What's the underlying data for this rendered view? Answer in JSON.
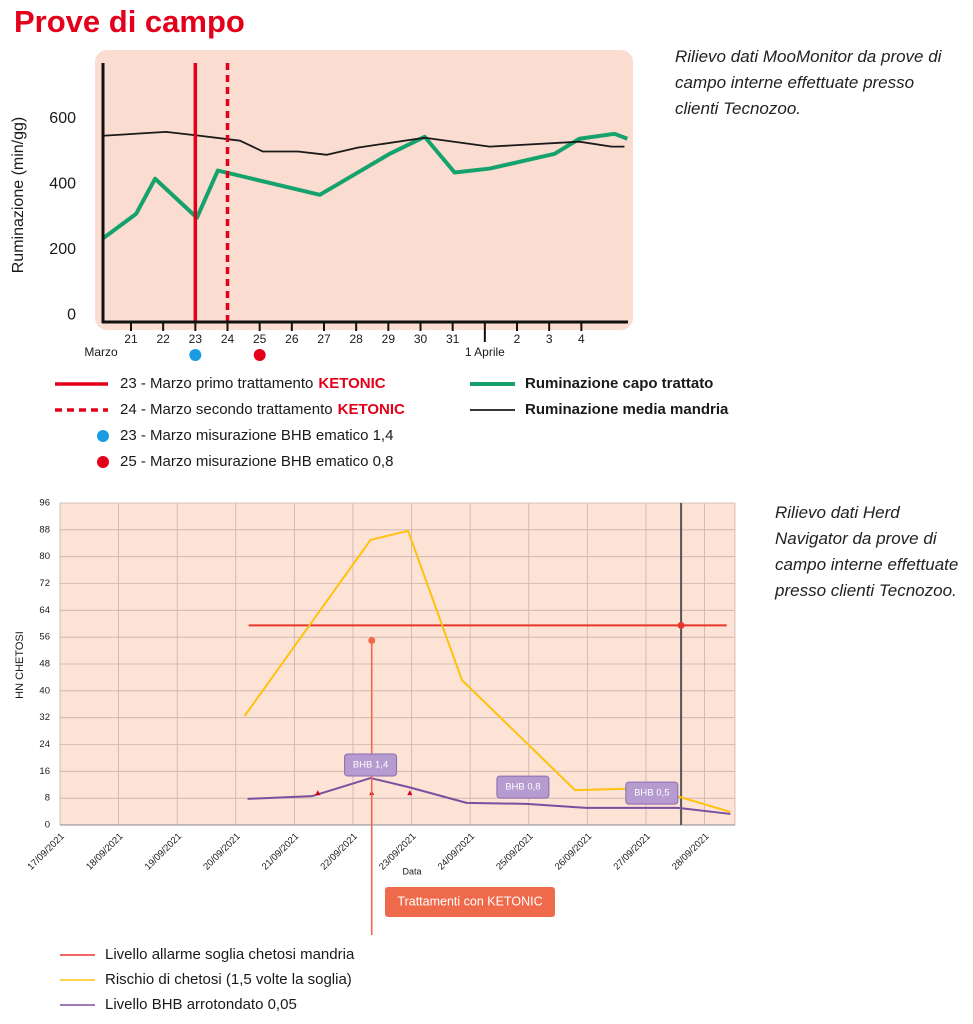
{
  "title": "Prove di campo",
  "chart_data": [
    {
      "type": "line",
      "note": "Rilievo dati MooMonitor da prove di campo interne effettuate presso clienti Tecnozoo.",
      "ylabel": "Ruminazione (min/gg)",
      "month_label": "Marzo",
      "xlim": [
        20.13,
        36.45
      ],
      "ylim": [
        -20,
        770
      ],
      "xticks": [
        21,
        22,
        23,
        24,
        25,
        26,
        27,
        28,
        29,
        30,
        31,
        {
          "value": 32,
          "label": "1 Aprile"
        },
        {
          "value": 33,
          "label": "2"
        },
        {
          "value": 34,
          "label": "3"
        },
        {
          "value": 35,
          "label": "4"
        }
      ],
      "yticks": [
        0,
        200,
        400,
        600
      ],
      "grid": false,
      "series": [
        {
          "name": "Ruminazione capo trattato",
          "color": "#16a26c",
          "x": [
            20.13,
            21.16,
            21.75,
            23.05,
            23.7,
            26.87,
            29.04,
            30.13,
            31.06,
            32.15,
            34.17,
            34.94,
            36.03,
            36.43
          ],
          "values": [
            235,
            310,
            417,
            298,
            442,
            368,
            493,
            545,
            436,
            448,
            493,
            539,
            554,
            539
          ]
        },
        {
          "name": "Ruminazione media mandria",
          "color": "#1a1a1a",
          "x": [
            20.13,
            22.09,
            23.14,
            24.39,
            25.1,
            26.19,
            27.09,
            28.05,
            30.13,
            32.15,
            34.94,
            35.94,
            36.34
          ],
          "values": [
            548,
            560,
            548,
            533,
            500,
            500,
            490,
            512,
            542,
            515,
            530,
            515,
            515
          ]
        }
      ],
      "treatments": [
        {
          "x": 23,
          "label": "23 - Marzo primo trattamento",
          "product": "KETONIC",
          "color": "#e3001b",
          "style": "solid"
        },
        {
          "x": 24,
          "label": "24 - Marzo secondo trattamento",
          "product": "KETONIC",
          "color": "#e3001b",
          "style": "dashed"
        }
      ],
      "measurements": [
        {
          "x": 23,
          "label": "23 - Marzo  misurazione BHB ematico 1,4",
          "color": "#1b9ce2"
        },
        {
          "x": 25,
          "label": "25 - Marzo misurazione BHB ematico 0,8",
          "color": "#e3001b"
        }
      ]
    },
    {
      "type": "line",
      "note": "Rilievo dati Herd Navigator da prove di campo interne effettuate presso clienti Tecnozoo.",
      "ylabel": "HN CHETOSI",
      "xlabel": "Data",
      "xlim": [
        17,
        28.52
      ],
      "ylim": [
        0,
        96
      ],
      "xticks": [
        {
          "value": 17,
          "label": "17/09/2021"
        },
        {
          "value": 18,
          "label": "18/09/2021"
        },
        {
          "value": 19,
          "label": "19/09/2021"
        },
        {
          "value": 20,
          "label": "20/09/2021"
        },
        {
          "value": 21,
          "label": "21/09/2021"
        },
        {
          "value": 22,
          "label": "22/09/2021"
        },
        {
          "value": 23,
          "label": "23/09/2021"
        },
        {
          "value": 24,
          "label": "24/09/2021"
        },
        {
          "value": 25,
          "label": "25/09/2021"
        },
        {
          "value": 26,
          "label": "26/09/2021"
        },
        {
          "value": 27,
          "label": "27/09/2021"
        },
        {
          "value": 28,
          "label": "28/09/2021"
        }
      ],
      "yticks": [
        0,
        8,
        16,
        24,
        32,
        40,
        48,
        56,
        64,
        72,
        80,
        88,
        96
      ],
      "grid": true,
      "series": [
        {
          "name": "Livello allarme soglia chetosi mandria",
          "color": "#e8362d",
          "x": [
            20.22,
            28.38
          ],
          "values": [
            59.5,
            59.5
          ]
        },
        {
          "name": "Rischio di chetosi (1,5 volte la soglia)",
          "color": "#ffc20e",
          "x": [
            20.15,
            22.3,
            22.94,
            23.86,
            25.79,
            27.07,
            28.44
          ],
          "values": [
            32.5,
            85,
            87.7,
            43.2,
            10.4,
            11,
            3.9
          ]
        },
        {
          "name": "Livello BHB arrotondato 0,05",
          "color": "#7b4fa0",
          "x": [
            20.2,
            21.3,
            22.3,
            22.95,
            23.94,
            24.96,
            25.98,
            27.55,
            28.44
          ],
          "values": [
            7.8,
            8.6,
            14,
            11.3,
            6.6,
            6.3,
            5.1,
            5.1,
            3.3
          ]
        }
      ],
      "cursor_x": 27.6,
      "treatment": {
        "x": 22.32,
        "y": 55,
        "label": "Trattamenti con KETONIC",
        "color": "#ef6a4a"
      },
      "treatment_marks": {
        "x": [
          21.4,
          22.32,
          22.97
        ],
        "values": [
          9.5,
          9.5,
          9.5
        ],
        "color": "#d4001a"
      },
      "annotations": [
        {
          "text": "BHB 1,4",
          "x": 22.3,
          "y": 17.9
        },
        {
          "text": "BHB 0,8",
          "x": 24.9,
          "y": 11.3
        },
        {
          "text": "BHB 0,5",
          "x": 27.1,
          "y": 9.5
        }
      ]
    }
  ]
}
